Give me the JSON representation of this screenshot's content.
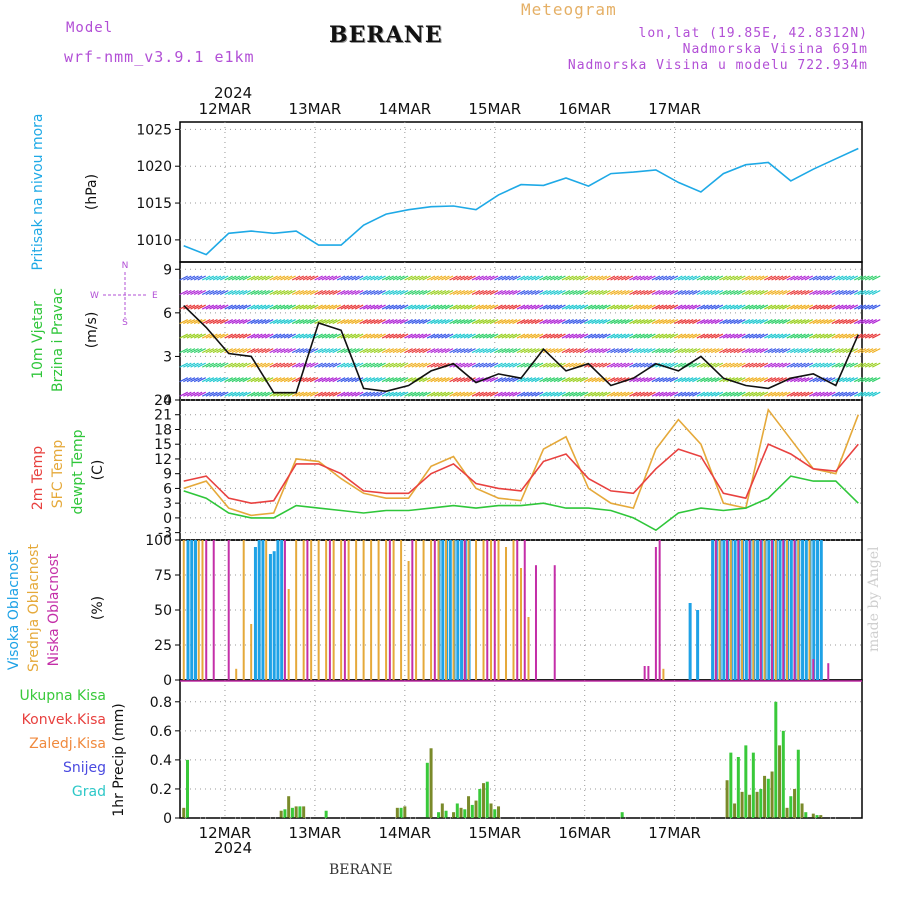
{
  "header": {
    "model_label": "Model",
    "model_name": "wrf-nmm_v3.9.1  e1km",
    "station": "BERANE",
    "product": "Meteogram",
    "coords": "lon,lat (19.85E, 42.8312N)",
    "elevation": "Nadmorska Visina 691m",
    "model_elevation": "Nadmorska Visina u modelu 722.934m",
    "credit": "made by Angel",
    "footer_station": "BERANE",
    "year": "2024"
  },
  "colors": {
    "pressure": "#1ea9e6",
    "temp2m": "#e8413f",
    "sfc_temp": "#e5a93a",
    "dewpt": "#2fc63a",
    "cloud_high": "#1ea2e6",
    "cloud_mid": "#e5a93a",
    "cloud_low": "#c42fa8",
    "precip_total": "#39c93a",
    "precip_conv": "#e8413f",
    "precip_frozen": "#f08a3e",
    "snow": "#4a4ae0",
    "hail": "#2ec8c8",
    "header_violet": "#b24fd6",
    "header_gold": "#e5b066"
  },
  "chart_data": [
    {
      "type": "line",
      "panel": "pressure",
      "ylabel": "Pritisak na nivou mora",
      "unit": "(hPa)",
      "ylim": [
        1007,
        1026
      ],
      "yticks": [
        1010,
        1015,
        1020,
        1025
      ],
      "x_day_ticks": [
        "12MAR",
        "13MAR",
        "14MAR",
        "15MAR",
        "16MAR",
        "17MAR"
      ],
      "series": [
        {
          "x": [
            0,
            6,
            12,
            18,
            24,
            30,
            36,
            42,
            48,
            54,
            60,
            66,
            72,
            78,
            84,
            90,
            96,
            102,
            108,
            114,
            120,
            126,
            132,
            138,
            144,
            150,
            156,
            162,
            168,
            174,
            180
          ],
          "values": [
            1009.2,
            1008.0,
            1010.9,
            1011.2,
            1010.9,
            1011.2,
            1009.3,
            1009.3,
            1012.0,
            1013.5,
            1014.1,
            1014.5,
            1014.6,
            1014.1,
            1016.1,
            1017.5,
            1017.4,
            1018.4,
            1017.3,
            1019.0,
            1019.2,
            1019.5,
            1017.8,
            1016.5,
            1019.0,
            1020.2,
            1020.5,
            1018.0,
            1019.6,
            1021.0,
            1022.4
          ]
        }
      ]
    },
    {
      "type": "line",
      "panel": "wind",
      "ylabel": "10m Vjetar Brzina i Pravac",
      "unit": "(m/s)",
      "ylim": [
        0,
        9.5
      ],
      "yticks": [
        0,
        3,
        6,
        9
      ],
      "compass": [
        "N",
        "W",
        "E",
        "S"
      ],
      "series": [
        {
          "name": "speed",
          "x": [
            0,
            6,
            12,
            18,
            24,
            30,
            36,
            42,
            48,
            54,
            60,
            66,
            72,
            78,
            84,
            90,
            96,
            102,
            108,
            114,
            120,
            126,
            132,
            138,
            144,
            150,
            156,
            162,
            168,
            174,
            180
          ],
          "values": [
            6.5,
            5.0,
            3.2,
            3.0,
            0.5,
            0.5,
            5.3,
            4.8,
            0.8,
            0.6,
            1.0,
            2.0,
            2.5,
            1.2,
            1.8,
            1.5,
            3.5,
            2.0,
            2.5,
            1.0,
            1.5,
            2.5,
            2.0,
            3.0,
            1.5,
            1.0,
            0.8,
            1.5,
            1.8,
            1.0,
            4.5
          ]
        }
      ]
    },
    {
      "type": "line",
      "panel": "temperature",
      "ylabel": "2m Temp / SFC Temp / dewpt Temp",
      "unit": "(C)",
      "ylim": [
        -4.5,
        24
      ],
      "yticks": [
        -3,
        0,
        3,
        6,
        9,
        12,
        15,
        18,
        21,
        24
      ],
      "series": [
        {
          "name": "2m Temp",
          "x": [
            0,
            6,
            12,
            18,
            24,
            30,
            36,
            42,
            48,
            54,
            60,
            66,
            72,
            78,
            84,
            90,
            96,
            102,
            108,
            114,
            120,
            126,
            132,
            138,
            144,
            150,
            156,
            162,
            168,
            174,
            180
          ],
          "values": [
            7.5,
            8.5,
            4.0,
            3.0,
            3.5,
            11.0,
            11.0,
            9.0,
            5.5,
            5.0,
            5.0,
            9.0,
            11.0,
            7.0,
            6.0,
            5.5,
            11.5,
            13.0,
            8.0,
            5.5,
            5.0,
            10.0,
            14.0,
            12.5,
            5.0,
            4.0,
            15.0,
            13.0,
            10.0,
            9.5,
            15.0
          ]
        },
        {
          "name": "SFC Temp",
          "x": [
            0,
            6,
            12,
            18,
            24,
            30,
            36,
            42,
            48,
            54,
            60,
            66,
            72,
            78,
            84,
            90,
            96,
            102,
            108,
            114,
            120,
            126,
            132,
            138,
            144,
            150,
            156,
            162,
            168,
            174,
            180
          ],
          "values": [
            6.0,
            7.5,
            2.0,
            0.5,
            1.0,
            12.0,
            11.5,
            8.0,
            5.0,
            4.0,
            4.0,
            10.5,
            12.5,
            6.0,
            4.0,
            3.5,
            14.0,
            16.5,
            6.0,
            3.0,
            2.0,
            14.0,
            20.0,
            15.0,
            3.0,
            2.0,
            22.0,
            16.0,
            10.0,
            9.0,
            21.0
          ]
        },
        {
          "name": "dewpt Temp",
          "x": [
            0,
            6,
            12,
            18,
            24,
            30,
            36,
            42,
            48,
            54,
            60,
            66,
            72,
            78,
            84,
            90,
            96,
            102,
            108,
            114,
            120,
            126,
            132,
            138,
            144,
            150,
            156,
            162,
            168,
            174,
            180
          ],
          "values": [
            5.5,
            4.0,
            1.0,
            0.0,
            0.0,
            2.5,
            2.0,
            1.5,
            1.0,
            1.5,
            1.5,
            2.0,
            2.5,
            2.0,
            2.5,
            2.5,
            3.0,
            2.0,
            2.0,
            1.5,
            0.0,
            -2.5,
            1.0,
            2.0,
            1.5,
            2.0,
            4.0,
            8.5,
            7.5,
            7.5,
            3.0
          ]
        }
      ]
    },
    {
      "type": "bar",
      "panel": "cloud",
      "ylabel": "Visoka Oblacnost / Srednja Oblacnost / Niska Oblacnost",
      "unit": "(%)",
      "ylim": [
        0,
        100
      ],
      "yticks": [
        0,
        25,
        50,
        75,
        100
      ],
      "series": [
        {
          "name": "Visoka Oblacnost",
          "x": [
            1,
            2,
            3,
            19,
            20,
            21,
            23,
            24,
            25,
            26,
            68,
            69,
            70,
            71,
            72,
            73,
            74,
            75,
            76,
            135,
            137,
            141,
            142,
            143,
            144,
            145,
            146,
            147,
            148,
            149,
            150,
            151,
            152,
            153,
            154,
            155,
            156,
            157,
            158,
            159,
            160,
            161,
            162,
            163,
            164,
            165,
            166,
            167,
            168,
            169,
            170
          ],
          "values": [
            100,
            100,
            100,
            95,
            100,
            100,
            90,
            92,
            100,
            100,
            100,
            100,
            100,
            100,
            100,
            100,
            100,
            100,
            100,
            55,
            50,
            100,
            100,
            100,
            100,
            100,
            100,
            100,
            100,
            100,
            100,
            100,
            100,
            100,
            100,
            100,
            100,
            100,
            100,
            100,
            100,
            100,
            100,
            100,
            100,
            100,
            100,
            100,
            100,
            100,
            100
          ]
        },
        {
          "name": "Srednja Oblacnost",
          "x": [
            0,
            4,
            5,
            14,
            16,
            18,
            22,
            28,
            30,
            32,
            34,
            36,
            38,
            40,
            42,
            44,
            46,
            48,
            50,
            52,
            54,
            56,
            58,
            60,
            62,
            64,
            66,
            68,
            70,
            72,
            76,
            78,
            80,
            82,
            84,
            86,
            88,
            90,
            92,
            128,
            143,
            146,
            149,
            152,
            155,
            158,
            161,
            164,
            167
          ],
          "values": [
            100,
            100,
            100,
            8,
            100,
            40,
            100,
            65,
            100,
            100,
            100,
            100,
            100,
            100,
            100,
            100,
            100,
            100,
            100,
            100,
            100,
            100,
            100,
            85,
            100,
            100,
            100,
            100,
            100,
            100,
            100,
            100,
            100,
            100,
            100,
            95,
            100,
            80,
            45,
            8,
            100,
            100,
            100,
            100,
            100,
            100,
            100,
            100,
            100
          ]
        },
        {
          "name": "Niska Oblacnost",
          "x": [
            6,
            8,
            12,
            27,
            33,
            39,
            43,
            55,
            61,
            67,
            75,
            81,
            83,
            89,
            91,
            94,
            99,
            123,
            124,
            126,
            127,
            142,
            145,
            148,
            151,
            154,
            157,
            160,
            163,
            168,
            172
          ],
          "values": [
            100,
            100,
            100,
            100,
            100,
            100,
            100,
            100,
            100,
            100,
            100,
            100,
            100,
            100,
            100,
            82,
            82,
            10,
            10,
            95,
            100,
            100,
            100,
            100,
            100,
            100,
            100,
            100,
            100,
            15,
            12
          ]
        }
      ]
    },
    {
      "type": "bar",
      "panel": "precip",
      "ylabel": "1hr Precip",
      "unit": "(mm)",
      "ylim": [
        0,
        0.95
      ],
      "yticks": [
        0,
        0.2,
        0.4,
        0.6,
        0.8
      ],
      "legend": [
        "Ukupna  Kisa",
        "Konvek.Kisa",
        "Zaledj.Kisa",
        "Snijeg",
        "Grad"
      ],
      "series": [
        {
          "name": "Ukupna  Kisa",
          "x": [
            0,
            1,
            26,
            27,
            28,
            29,
            30,
            31,
            32,
            38,
            57,
            58,
            59,
            65,
            66,
            68,
            69,
            70,
            72,
            73,
            74,
            75,
            76,
            77,
            78,
            79,
            80,
            81,
            82,
            83,
            84,
            117,
            145,
            146,
            147,
            148,
            149,
            150,
            151,
            152,
            153,
            154,
            155,
            156,
            157,
            158,
            159,
            160,
            161,
            162,
            163,
            164,
            165,
            166,
            168,
            169,
            170
          ],
          "values": [
            0.07,
            0.4,
            0.05,
            0.06,
            0.15,
            0.07,
            0.08,
            0.08,
            0.08,
            0.05,
            0.07,
            0.07,
            0.08,
            0.38,
            0.48,
            0.04,
            0.1,
            0.05,
            0.04,
            0.1,
            0.07,
            0.06,
            0.15,
            0.09,
            0.12,
            0.2,
            0.24,
            0.25,
            0.1,
            0.06,
            0.08,
            0.04,
            0.26,
            0.45,
            0.1,
            0.42,
            0.18,
            0.5,
            0.16,
            0.45,
            0.18,
            0.2,
            0.29,
            0.27,
            0.32,
            0.8,
            0.5,
            0.6,
            0.07,
            0.15,
            0.2,
            0.47,
            0.1,
            0.04,
            0.03,
            0.02,
            0.02
          ]
        }
      ]
    }
  ]
}
